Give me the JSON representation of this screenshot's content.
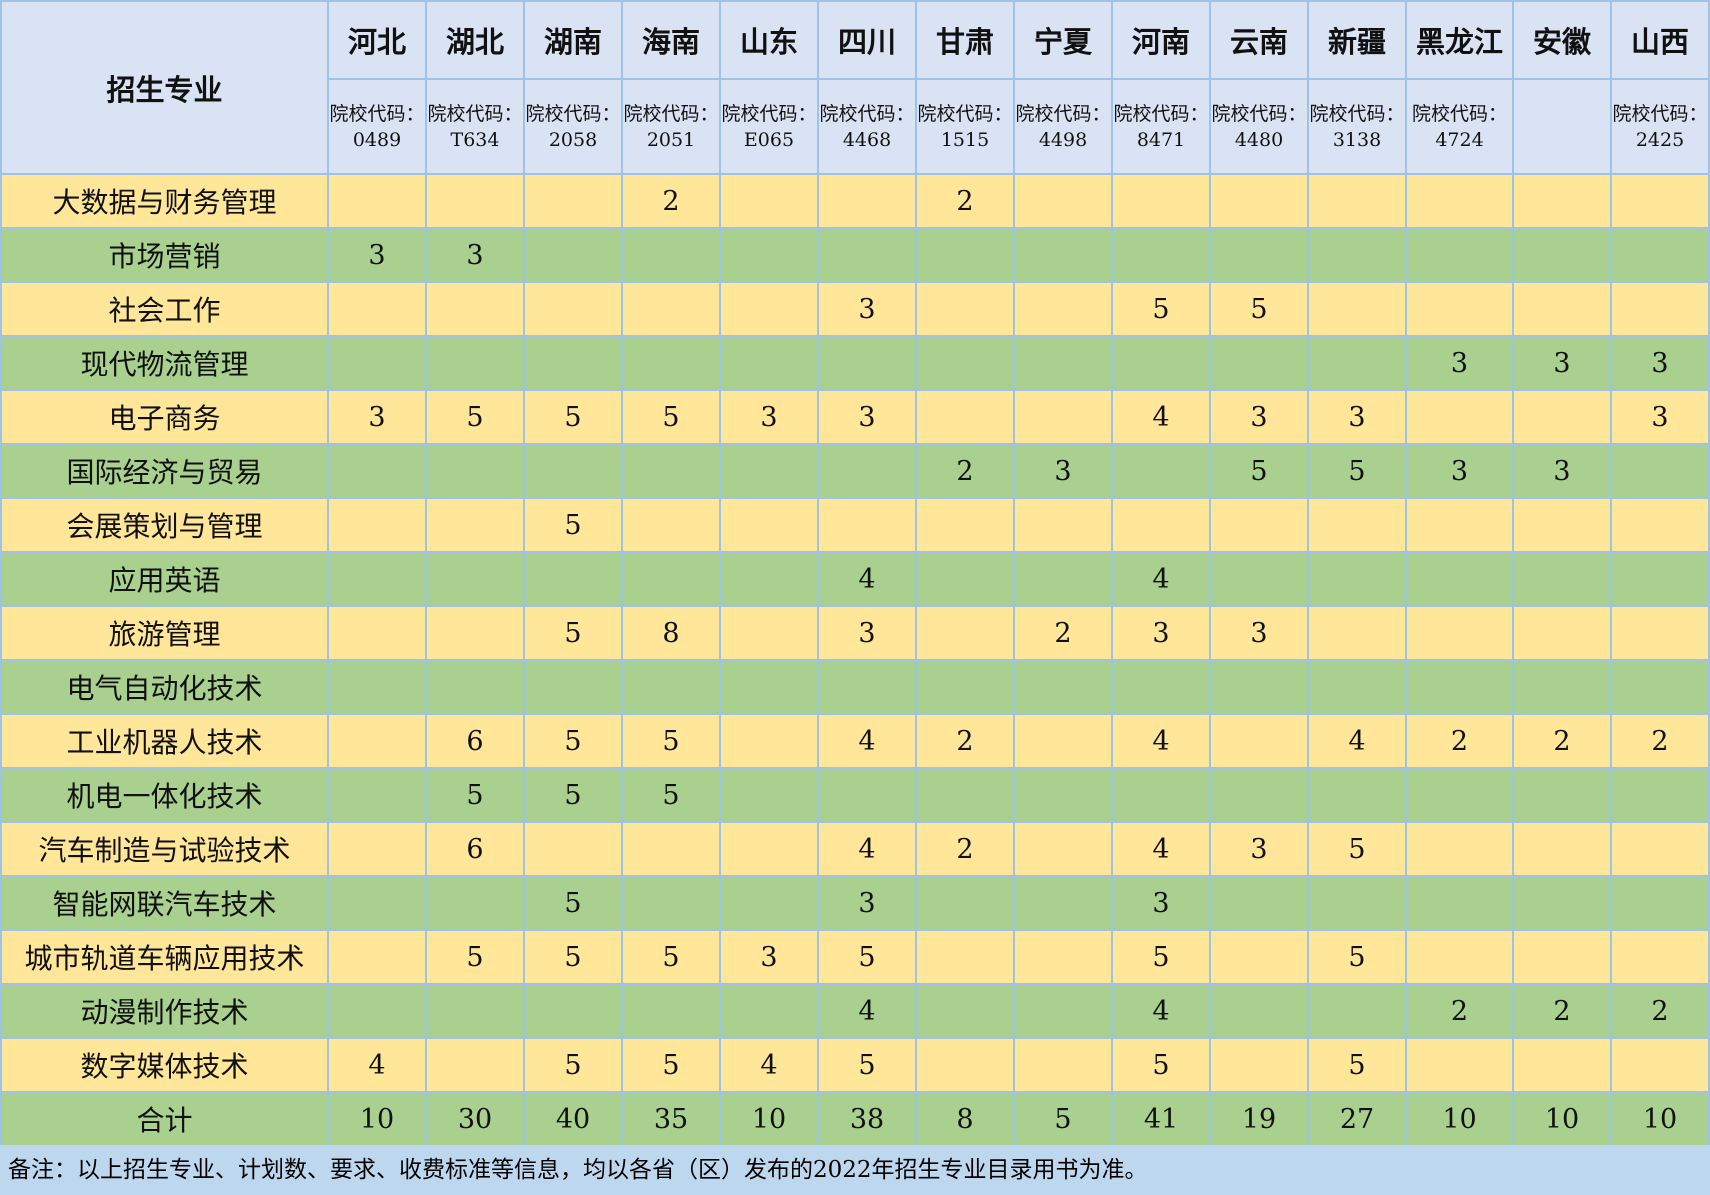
{
  "header": {
    "major_label": "招生专业",
    "provinces": [
      {
        "name": "河北",
        "code": "院校代码：0489"
      },
      {
        "name": "湖北",
        "code": "院校代码：T634"
      },
      {
        "name": "湖南",
        "code": "院校代码：2058"
      },
      {
        "name": "海南",
        "code": "院校代码：2051"
      },
      {
        "name": "山东",
        "code": "院校代码：E065"
      },
      {
        "name": "四川",
        "code": "院校代码：4468"
      },
      {
        "name": "甘肃",
        "code": "院校代码：1515"
      },
      {
        "name": "宁夏",
        "code": "院校代码：4498"
      },
      {
        "name": "河南",
        "code": "院校代码：8471"
      },
      {
        "name": "云南",
        "code": "院校代码：4480"
      },
      {
        "name": "新疆",
        "code": "院校代码：3138"
      },
      {
        "name": "黑龙江",
        "code": "院校代码：4724"
      },
      {
        "name": "安徽",
        "code": ""
      },
      {
        "name": "山西",
        "code": "院校代码：2425"
      }
    ]
  },
  "rows": [
    {
      "major": "大数据与财务管理",
      "values": [
        "",
        "",
        "",
        "2",
        "",
        "",
        "2",
        "",
        "",
        "",
        "",
        "",
        "",
        ""
      ]
    },
    {
      "major": "市场营销",
      "values": [
        "3",
        "3",
        "",
        "",
        "",
        "",
        "",
        "",
        "",
        "",
        "",
        "",
        "",
        ""
      ]
    },
    {
      "major": "社会工作",
      "values": [
        "",
        "",
        "",
        "",
        "",
        "3",
        "",
        "",
        "5",
        "5",
        "",
        "",
        "",
        ""
      ]
    },
    {
      "major": "现代物流管理",
      "values": [
        "",
        "",
        "",
        "",
        "",
        "",
        "",
        "",
        "",
        "",
        "",
        "3",
        "3",
        "3"
      ]
    },
    {
      "major": "电子商务",
      "values": [
        "3",
        "5",
        "5",
        "5",
        "3",
        "3",
        "",
        "",
        "4",
        "3",
        "3",
        "",
        "",
        "3"
      ]
    },
    {
      "major": "国际经济与贸易",
      "values": [
        "",
        "",
        "",
        "",
        "",
        "",
        "2",
        "3",
        "",
        "5",
        "5",
        "3",
        "3",
        ""
      ]
    },
    {
      "major": "会展策划与管理",
      "values": [
        "",
        "",
        "5",
        "",
        "",
        "",
        "",
        "",
        "",
        "",
        "",
        "",
        "",
        ""
      ]
    },
    {
      "major": "应用英语",
      "values": [
        "",
        "",
        "",
        "",
        "",
        "4",
        "",
        "",
        "4",
        "",
        "",
        "",
        "",
        ""
      ]
    },
    {
      "major": "旅游管理",
      "values": [
        "",
        "",
        "5",
        "8",
        "",
        "3",
        "",
        "2",
        "3",
        "3",
        "",
        "",
        "",
        ""
      ]
    },
    {
      "major": "电气自动化技术",
      "values": [
        "",
        "",
        "",
        "",
        "",
        "",
        "",
        "",
        "",
        "",
        "",
        "",
        "",
        ""
      ]
    },
    {
      "major": "工业机器人技术",
      "values": [
        "",
        "6",
        "5",
        "5",
        "",
        "4",
        "2",
        "",
        "4",
        "",
        "4",
        "2",
        "2",
        "2"
      ]
    },
    {
      "major": "机电一体化技术",
      "values": [
        "",
        "5",
        "5",
        "5",
        "",
        "",
        "",
        "",
        "",
        "",
        "",
        "",
        "",
        ""
      ]
    },
    {
      "major": "汽车制造与试验技术",
      "values": [
        "",
        "6",
        "",
        "",
        "",
        "4",
        "2",
        "",
        "4",
        "3",
        "5",
        "",
        "",
        ""
      ]
    },
    {
      "major": "智能网联汽车技术",
      "values": [
        "",
        "",
        "5",
        "",
        "",
        "3",
        "",
        "",
        "3",
        "",
        "",
        "",
        "",
        ""
      ]
    },
    {
      "major": "城市轨道车辆应用技术",
      "values": [
        "",
        "5",
        "5",
        "5",
        "3",
        "5",
        "",
        "",
        "5",
        "",
        "5",
        "",
        "",
        ""
      ]
    },
    {
      "major": "动漫制作技术",
      "values": [
        "",
        "",
        "",
        "",
        "",
        "4",
        "",
        "",
        "4",
        "",
        "",
        "2",
        "2",
        "2"
      ]
    },
    {
      "major": "数字媒体技术",
      "values": [
        "4",
        "",
        "5",
        "5",
        "4",
        "5",
        "",
        "",
        "5",
        "",
        "5",
        "",
        "",
        ""
      ]
    },
    {
      "major": "合计",
      "values": [
        "10",
        "30",
        "40",
        "35",
        "10",
        "38",
        "8",
        "5",
        "41",
        "19",
        "27",
        "10",
        "10",
        "10"
      ]
    }
  ],
  "note": "备注：以上招生专业、计划数、要求、收费标准等信息，均以各省（区）发布的2022年招生专业目录用书为准。",
  "colors": {
    "header": "#dae3f3",
    "yellow_row": "#ffe699",
    "green_row": "#a9d08e",
    "note_bg": "#bdd7ee",
    "border": "#9dc3e6"
  }
}
